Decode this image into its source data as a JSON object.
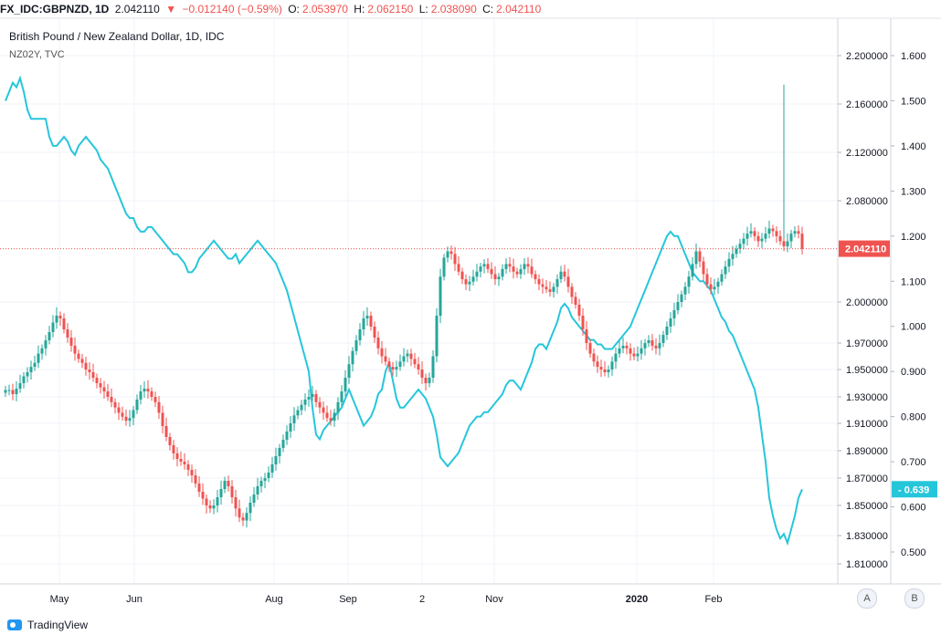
{
  "header": {
    "symbol": "FX_IDC:GBPNZD, 1D",
    "last": "2.042110",
    "change": "−0.012140 (−0.59%)",
    "o_label": "O:",
    "o": "2.053970",
    "h_label": "H:",
    "h": "2.062150",
    "l_label": "L:",
    "l": "2.038090",
    "c_label": "C:",
    "c": "2.042110"
  },
  "legend": {
    "title": "British Pound / New Zealand Dollar, 1D, IDC",
    "overlay": "NZ02Y, TVC"
  },
  "buttons": {
    "a": "A",
    "b": "B"
  },
  "brand": "TradingView",
  "chart_data": {
    "type": "candlestick",
    "x_ticks": [
      "May",
      "Jun",
      "Aug",
      "Sep",
      "2",
      "Nov",
      "2020",
      "Feb"
    ],
    "price_axis": {
      "ticks": [
        "2.200000",
        "2.160000",
        "2.120000",
        "2.080000",
        "2.000000",
        "1.970000",
        "1.950000",
        "1.930000",
        "1.910000",
        "1.890000",
        "1.870000",
        "1.850000",
        "1.830000",
        "1.810000"
      ],
      "last_value_label": "2.042110",
      "last_value": 2.04211
    },
    "yield_axis": {
      "ticks": [
        "1.600",
        "1.500",
        "1.400",
        "1.300",
        "1.200",
        "1.100",
        "1.000",
        "0.900",
        "0.800",
        "0.700",
        "0.600",
        "0.500"
      ],
      "last_value_label": "0.639",
      "last_value": 0.639
    },
    "colors": {
      "up": "#26a69a",
      "down": "#ef5350",
      "overlay": "#26c6da",
      "last_line": "#ef5350"
    },
    "price_series": [
      1.935,
      1.935,
      1.932,
      1.936,
      1.94,
      1.945,
      1.948,
      1.952,
      1.955,
      1.962,
      1.966,
      1.972,
      1.978,
      1.985,
      1.99,
      1.988,
      1.98,
      1.974,
      1.968,
      1.962,
      1.958,
      1.955,
      1.95,
      1.948,
      1.944,
      1.94,
      1.937,
      1.934,
      1.93,
      1.926,
      1.922,
      1.918,
      1.915,
      1.912,
      1.914,
      1.92,
      1.928,
      1.934,
      1.936,
      1.934,
      1.93,
      1.926,
      1.918,
      1.908,
      1.9,
      1.894,
      1.888,
      1.884,
      1.882,
      1.88,
      1.876,
      1.872,
      1.866,
      1.86,
      1.855,
      1.85,
      1.848,
      1.85,
      1.856,
      1.862,
      1.868,
      1.864,
      1.856,
      1.848,
      1.842,
      1.84,
      1.845,
      1.852,
      1.858,
      1.864,
      1.868,
      1.87,
      1.874,
      1.88,
      1.886,
      1.892,
      1.898,
      1.904,
      1.91,
      1.916,
      1.92,
      1.924,
      1.928,
      1.93,
      1.932,
      1.926,
      1.922,
      1.918,
      1.914,
      1.912,
      1.918,
      1.926,
      1.934,
      1.944,
      1.954,
      1.964,
      1.972,
      1.98,
      1.988,
      1.99,
      1.982,
      1.974,
      1.966,
      1.96,
      1.956,
      1.952,
      1.95,
      1.952,
      1.956,
      1.96,
      1.962,
      1.958,
      1.954,
      1.95,
      1.944,
      1.94,
      1.944,
      1.96,
      1.99,
      2.02,
      2.035,
      2.04,
      2.038,
      2.03,
      2.024,
      2.018,
      2.014,
      2.016,
      2.02,
      2.024,
      2.028,
      2.03,
      2.026,
      2.022,
      2.018,
      2.02,
      2.026,
      2.03,
      2.028,
      2.024,
      2.022,
      2.026,
      2.03,
      2.028,
      2.022,
      2.018,
      2.014,
      2.012,
      2.01,
      2.008,
      2.012,
      2.018,
      2.024,
      2.02,
      2.012,
      2.004,
      1.998,
      1.99,
      1.98,
      1.97,
      1.962,
      1.956,
      1.952,
      1.95,
      1.948,
      1.95,
      1.956,
      1.962,
      1.966,
      1.968,
      1.966,
      1.962,
      1.96,
      1.962,
      1.966,
      1.97,
      1.972,
      1.968,
      1.966,
      1.97,
      1.976,
      1.982,
      1.988,
      1.994,
      2.0,
      2.006,
      2.012,
      2.02,
      2.03,
      2.04,
      2.032,
      2.022,
      2.014,
      2.01,
      2.012,
      2.016,
      2.022,
      2.028,
      2.034,
      2.038,
      2.042,
      2.046,
      2.05,
      2.054,
      2.056,
      2.052,
      2.048,
      2.05,
      2.054,
      2.058,
      2.056,
      2.052,
      2.048,
      2.044,
      2.048,
      2.054,
      2.056,
      2.054,
      2.042
    ],
    "overlay_series": [
      1.5,
      1.52,
      1.54,
      1.53,
      1.55,
      1.52,
      1.48,
      1.46,
      1.46,
      1.46,
      1.46,
      1.46,
      1.42,
      1.4,
      1.4,
      1.41,
      1.42,
      1.41,
      1.39,
      1.38,
      1.4,
      1.41,
      1.42,
      1.41,
      1.4,
      1.39,
      1.37,
      1.36,
      1.35,
      1.33,
      1.31,
      1.29,
      1.27,
      1.25,
      1.24,
      1.24,
      1.22,
      1.21,
      1.21,
      1.22,
      1.22,
      1.21,
      1.2,
      1.19,
      1.18,
      1.17,
      1.16,
      1.16,
      1.15,
      1.14,
      1.12,
      1.12,
      1.13,
      1.15,
      1.16,
      1.17,
      1.18,
      1.19,
      1.18,
      1.17,
      1.16,
      1.15,
      1.15,
      1.16,
      1.14,
      1.15,
      1.16,
      1.17,
      1.18,
      1.19,
      1.18,
      1.17,
      1.16,
      1.15,
      1.14,
      1.12,
      1.1,
      1.08,
      1.05,
      1.02,
      0.99,
      0.96,
      0.93,
      0.9,
      0.82,
      0.76,
      0.75,
      0.77,
      0.78,
      0.79,
      0.8,
      0.81,
      0.82,
      0.84,
      0.86,
      0.84,
      0.82,
      0.8,
      0.78,
      0.79,
      0.8,
      0.82,
      0.85,
      0.86,
      0.9,
      0.92,
      0.88,
      0.84,
      0.82,
      0.82,
      0.83,
      0.84,
      0.85,
      0.86,
      0.85,
      0.84,
      0.82,
      0.8,
      0.76,
      0.71,
      0.7,
      0.69,
      0.7,
      0.71,
      0.72,
      0.74,
      0.76,
      0.78,
      0.79,
      0.8,
      0.8,
      0.81,
      0.81,
      0.82,
      0.83,
      0.84,
      0.85,
      0.87,
      0.88,
      0.88,
      0.87,
      0.86,
      0.88,
      0.9,
      0.92,
      0.95,
      0.96,
      0.96,
      0.95,
      0.97,
      0.99,
      1.01,
      1.04,
      1.05,
      1.04,
      1.02,
      1.01,
      1.0,
      0.99,
      0.98,
      0.97,
      0.97,
      0.96,
      0.96,
      0.95,
      0.95,
      0.95,
      0.96,
      0.97,
      0.98,
      0.99,
      1.0,
      1.02,
      1.04,
      1.06,
      1.08,
      1.1,
      1.12,
      1.14,
      1.16,
      1.18,
      1.2,
      1.21,
      1.2,
      1.2,
      1.18,
      1.16,
      1.14,
      1.12,
      1.11,
      1.1,
      1.1,
      1.09,
      1.08,
      1.06,
      1.04,
      1.02,
      1.01,
      0.99,
      0.98,
      0.96,
      0.94,
      0.92,
      0.9,
      0.88,
      0.86,
      0.82,
      0.76,
      0.7,
      0.62,
      0.58,
      0.55,
      0.53,
      0.54,
      0.52,
      0.55,
      0.58,
      0.62,
      0.639
    ],
    "spike": {
      "high": 2.176
    }
  }
}
